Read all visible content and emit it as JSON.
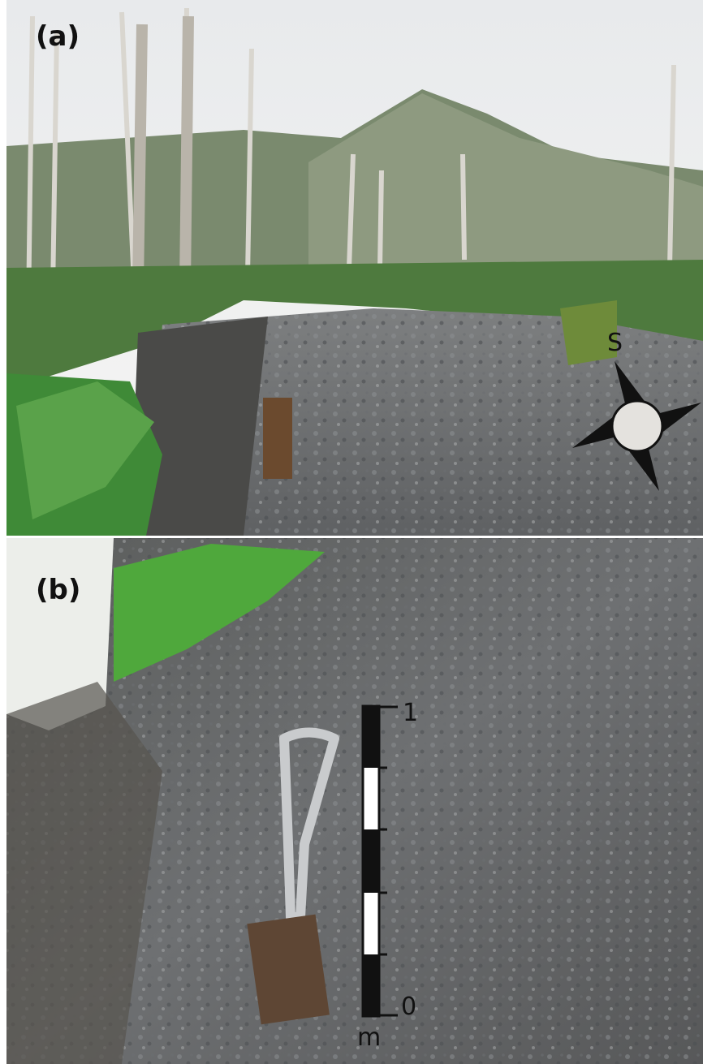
{
  "panels": [
    {
      "label": "(a)",
      "compass": {
        "label": "S"
      }
    },
    {
      "label": "(b)",
      "scale_bar": {
        "top_label": "1",
        "bottom_label": "0",
        "unit": "m"
      }
    }
  ]
}
